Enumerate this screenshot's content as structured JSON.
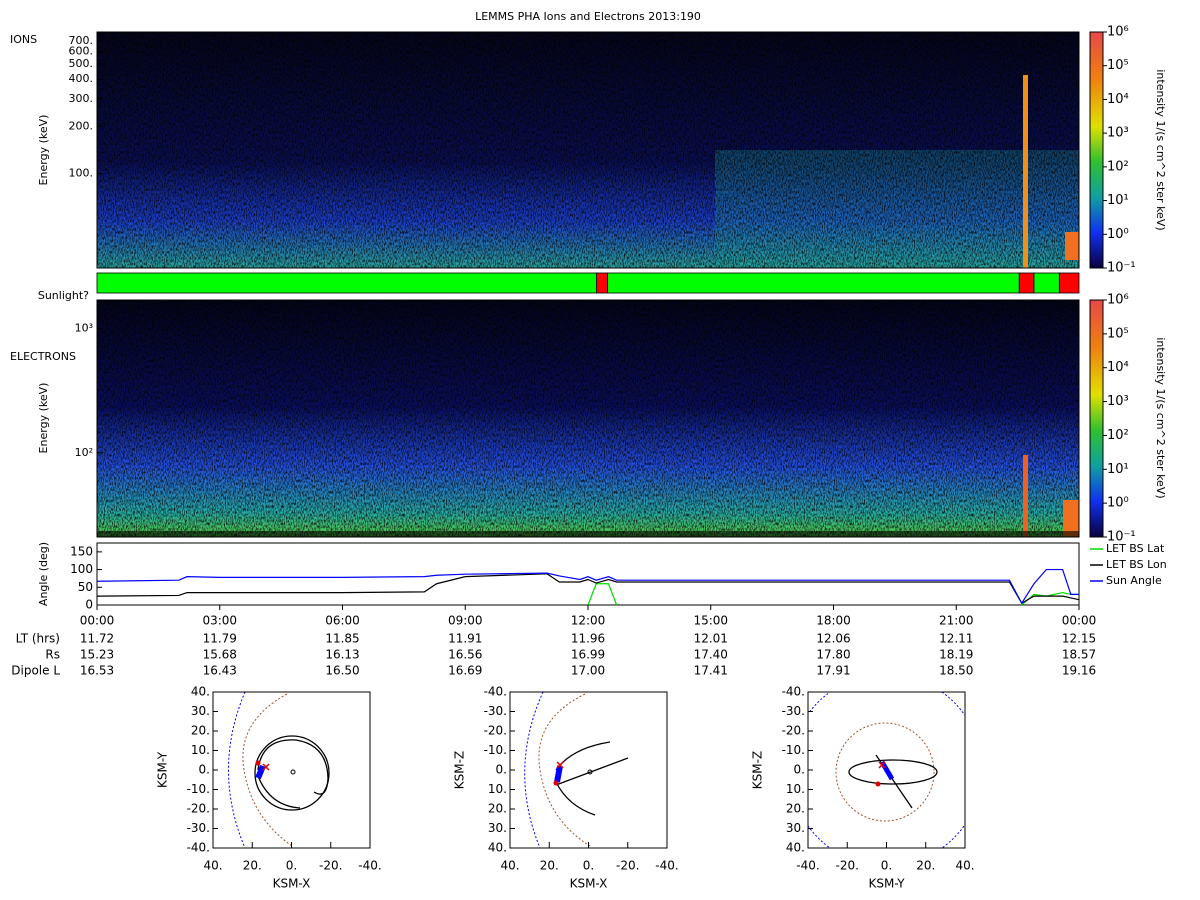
{
  "chart_data": [
    {
      "type": "heatmap",
      "title": "LEMMS PHA Ions and Electrons  2013:190",
      "label": "IONS",
      "ylabel": "Energy (keV)",
      "log": true,
      "ylim": [
        25,
        800
      ],
      "yticks": [
        {
          "value": 100,
          "label": "100."
        },
        {
          "value": 200,
          "label": "200."
        },
        {
          "value": 300,
          "label": "300."
        },
        {
          "value": 400,
          "label": "400."
        },
        {
          "value": 500,
          "label": "500."
        },
        {
          "value": 600,
          "label": "600."
        },
        {
          "value": 700,
          "label": "700."
        }
      ],
      "colorbar": {
        "label": "intensity 1/(s cm^2 ster keV)",
        "lim": [
          0.1,
          1000000
        ],
        "ticks": [
          {
            "value": 0.1,
            "label": "10⁻¹"
          },
          {
            "value": 1,
            "label": "10⁰"
          },
          {
            "value": 10,
            "label": "10¹"
          },
          {
            "value": 100,
            "label": "10²"
          },
          {
            "value": 1000,
            "label": "10³"
          },
          {
            "value": 10000,
            "label": "10⁴"
          },
          {
            "value": 100000,
            "label": "10⁵"
          },
          {
            "value": 1000000,
            "label": "10⁶"
          }
        ]
      }
    },
    {
      "type": "timeline",
      "label": "Sunlight?",
      "xlim": [
        0,
        24
      ],
      "segments": [
        {
          "start": 0,
          "end": 12.21,
          "color": "#00ff00"
        },
        {
          "start": 12.21,
          "end": 12.48,
          "color": "#ff0000"
        },
        {
          "start": 12.48,
          "end": 22.54,
          "color": "#00ff00"
        },
        {
          "start": 22.54,
          "end": 22.9,
          "color": "#ff0000"
        },
        {
          "start": 22.9,
          "end": 23.52,
          "color": "#00ff00"
        },
        {
          "start": 23.52,
          "end": 24,
          "color": "#ff0000"
        }
      ]
    },
    {
      "type": "heatmap",
      "label": "ELECTRONS",
      "ylabel": "Energy (keV)",
      "log": true,
      "ylim": [
        21,
        1700
      ],
      "yticks": [
        {
          "value": 100,
          "label": "10²"
        },
        {
          "value": 1000,
          "label": "10³"
        }
      ],
      "colorbar": {
        "label": "intensity 1/(s cm^2 ster keV)",
        "lim": [
          0.1,
          1000000
        ],
        "ticks": [
          {
            "value": 0.1,
            "label": "10⁻¹"
          },
          {
            "value": 1,
            "label": "10⁰"
          },
          {
            "value": 10,
            "label": "10¹"
          },
          {
            "value": 100,
            "label": "10²"
          },
          {
            "value": 1000,
            "label": "10³"
          },
          {
            "value": 10000,
            "label": "10⁴"
          },
          {
            "value": 100000,
            "label": "10⁵"
          },
          {
            "value": 1000000,
            "label": "10⁶"
          }
        ]
      }
    },
    {
      "type": "line",
      "ylabel": "Angle (deg)",
      "xlim": [
        0,
        24
      ],
      "ylim": [
        0,
        175
      ],
      "yticks": [
        0,
        50,
        100,
        150
      ],
      "xticks": [
        {
          "value": 0,
          "label": "00:00"
        },
        {
          "value": 3,
          "label": "03:00"
        },
        {
          "value": 6,
          "label": "06:00"
        },
        {
          "value": 9,
          "label": "09:00"
        },
        {
          "value": 12,
          "label": "12:00"
        },
        {
          "value": 15,
          "label": "15:00"
        },
        {
          "value": 18,
          "label": "18:00"
        },
        {
          "value": 21,
          "label": "21:00"
        },
        {
          "value": 24,
          "label": "00:00"
        }
      ],
      "x": [
        0,
        2,
        2.2,
        3,
        6,
        8,
        8.3,
        9,
        11,
        11.3,
        11.8,
        12,
        12.2,
        12.5,
        12.7,
        15,
        18,
        21,
        22.3,
        22.6,
        22.9,
        23.2,
        23.6,
        23.8,
        24
      ],
      "series": [
        {
          "name": "LET BS Lat",
          "color": "#00dd00",
          "values": [
            null,
            null,
            null,
            null,
            null,
            null,
            null,
            null,
            null,
            null,
            null,
            0,
            60,
            60,
            0,
            null,
            null,
            null,
            null,
            0,
            30,
            25,
            35,
            30,
            30
          ]
        },
        {
          "name": "LET BS Lon",
          "color": "#000000",
          "values": [
            25,
            27,
            35,
            35,
            35,
            37,
            60,
            80,
            88,
            65,
            65,
            72,
            62,
            72,
            65,
            65,
            65,
            65,
            65,
            5,
            25,
            25,
            25,
            20,
            15
          ]
        },
        {
          "name": "Sun Angle",
          "color": "#0000ff",
          "values": [
            67,
            70,
            80,
            78,
            78,
            80,
            84,
            87,
            90,
            82,
            72,
            80,
            70,
            80,
            70,
            70,
            70,
            70,
            70,
            5,
            60,
            100,
            100,
            30,
            30
          ]
        }
      ]
    },
    {
      "type": "orbit",
      "xlabel": "KSM-X",
      "ylabel": "KSM-Y",
      "xlim": [
        40,
        -40
      ],
      "ylim": [
        40,
        -40
      ],
      "xticks": [
        {
          "value": 40,
          "label": "40."
        },
        {
          "value": 20,
          "label": "20."
        },
        {
          "value": 0,
          "label": "0."
        },
        {
          "value": -20,
          "label": "-20."
        },
        {
          "value": -40,
          "label": "-40."
        }
      ],
      "yticks": [
        {
          "value": -40,
          "label": "-40."
        },
        {
          "value": -30,
          "label": "-30."
        },
        {
          "value": -20,
          "label": "-20."
        },
        {
          "value": -10,
          "label": "-10."
        },
        {
          "value": 0,
          "label": "0."
        },
        {
          "value": 10,
          "label": "10."
        },
        {
          "value": 20,
          "label": "20."
        },
        {
          "value": 30,
          "label": "30."
        },
        {
          "value": 40,
          "label": "40."
        }
      ]
    },
    {
      "type": "orbit",
      "xlabel": "KSM-X",
      "ylabel": "KSM-Z",
      "xlim": [
        40,
        -40
      ],
      "ylim": [
        -40,
        40
      ],
      "xticks": [
        {
          "value": 40,
          "label": "40."
        },
        {
          "value": 20,
          "label": "20."
        },
        {
          "value": 0,
          "label": "0."
        },
        {
          "value": -20,
          "label": "-20."
        },
        {
          "value": -40,
          "label": "-40."
        }
      ],
      "yticks": [
        {
          "value": 40,
          "label": "40."
        },
        {
          "value": 30,
          "label": "30."
        },
        {
          "value": 20,
          "label": "20."
        },
        {
          "value": 10,
          "label": "10."
        },
        {
          "value": 0,
          "label": "0."
        },
        {
          "value": -10,
          "label": "-10."
        },
        {
          "value": -20,
          "label": "-20."
        },
        {
          "value": -30,
          "label": "-30."
        },
        {
          "value": -40,
          "label": "-40."
        }
      ]
    },
    {
      "type": "orbit",
      "xlabel": "KSM-Y",
      "ylabel": "KSM-Z",
      "xlim": [
        -40,
        40
      ],
      "ylim": [
        -40,
        40
      ],
      "xticks": [
        {
          "value": -40,
          "label": "-40."
        },
        {
          "value": -20,
          "label": "-20."
        },
        {
          "value": 0,
          "label": "0."
        },
        {
          "value": 20,
          "label": "20."
        },
        {
          "value": 40,
          "label": "40."
        }
      ],
      "yticks": [
        {
          "value": 40,
          "label": "40."
        },
        {
          "value": 30,
          "label": "30."
        },
        {
          "value": 20,
          "label": "20."
        },
        {
          "value": 10,
          "label": "10."
        },
        {
          "value": 0,
          "label": "0."
        },
        {
          "value": -10,
          "label": "-10."
        },
        {
          "value": -20,
          "label": "-20."
        },
        {
          "value": -30,
          "label": "-30."
        },
        {
          "value": -40,
          "label": "-40."
        }
      ]
    }
  ],
  "ephemeris": {
    "rows": [
      {
        "label": "LT (hrs)",
        "values": [
          "11.72",
          "11.79",
          "11.85",
          "11.91",
          "11.96",
          "12.01",
          "12.06",
          "12.11",
          "12.15"
        ]
      },
      {
        "label": "Rs",
        "values": [
          "15.23",
          "15.68",
          "16.13",
          "16.56",
          "16.99",
          "17.40",
          "17.80",
          "18.19",
          "18.57"
        ]
      },
      {
        "label": "Dipole L",
        "values": [
          "16.53",
          "16.43",
          "16.50",
          "16.69",
          "17.00",
          "17.41",
          "17.91",
          "18.50",
          "19.16"
        ]
      }
    ]
  }
}
